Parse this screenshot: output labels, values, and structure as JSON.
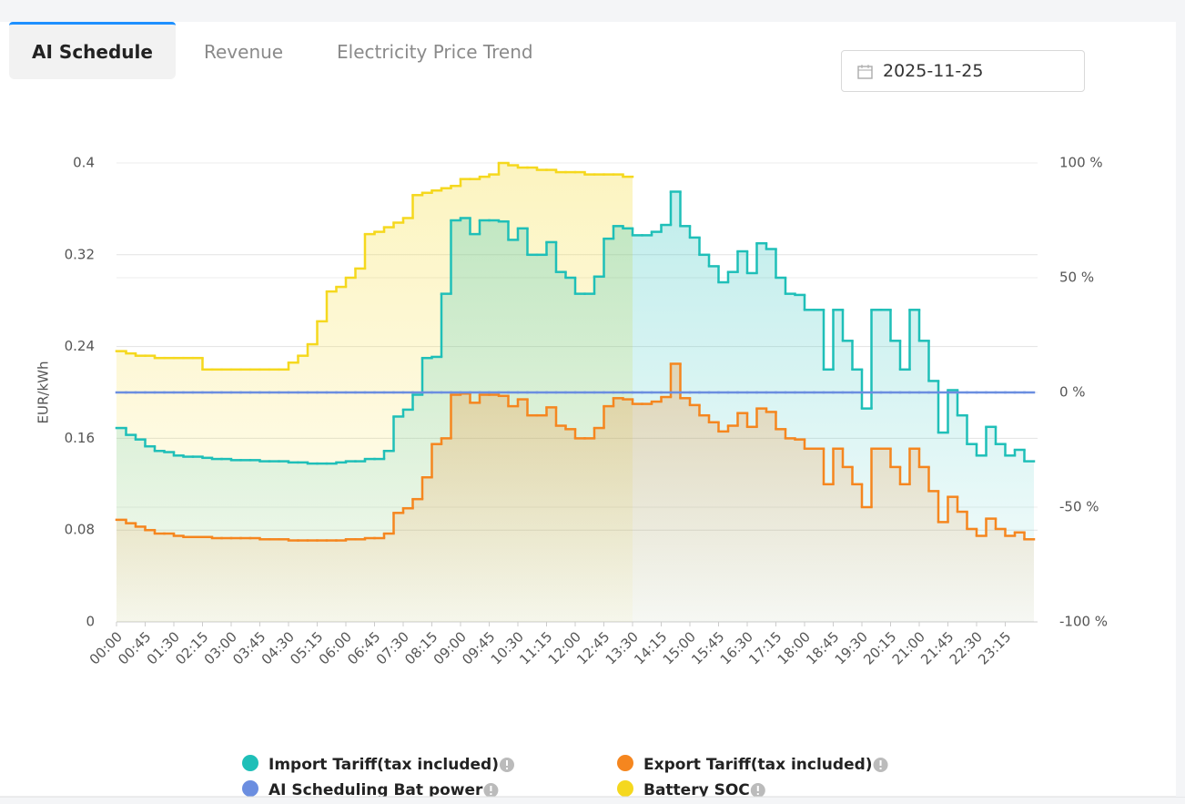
{
  "tabs": [
    "AI Schedule",
    "Revenue",
    "Electricity Price Trend"
  ],
  "date_picker": {
    "value": "2025-11-25"
  },
  "chart_data": {
    "type": "line",
    "y_label": "EUR/kWh",
    "categories": [
      "00:00",
      null,
      null,
      "00:45",
      null,
      null,
      "01:30",
      null,
      null,
      "02:15",
      null,
      null,
      "03:00",
      null,
      null,
      "03:45",
      null,
      null,
      "04:30",
      null,
      null,
      "05:15",
      null,
      null,
      "06:00",
      null,
      null,
      "06:45",
      null,
      null,
      "07:30",
      null,
      null,
      "08:15",
      null,
      null,
      "09:00",
      null,
      null,
      "09:45",
      null,
      null,
      "10:30",
      null,
      null,
      "11:15",
      null,
      null,
      "12:00",
      null,
      null,
      "12:45",
      null,
      null,
      "13:30",
      null,
      null,
      "14:15",
      null,
      null,
      "15:00",
      null,
      null,
      "15:45",
      null,
      null,
      "16:30",
      null,
      null,
      "17:15",
      null,
      null,
      "18:00",
      null,
      null,
      "18:45",
      null,
      null,
      "19:30",
      null,
      null,
      "20:15",
      null,
      null,
      "21:00",
      null,
      null,
      "21:45",
      null,
      null,
      "22:30",
      null,
      null,
      "23:15",
      null,
      null
    ],
    "ylim": [
      0,
      0.4
    ],
    "yticks": [
      0,
      0.08,
      0.16,
      0.24,
      0.32,
      0.4
    ],
    "y2lim": [
      -100,
      100
    ],
    "y2ticks": [
      {
        "value": -100,
        "label": "-100 %"
      },
      {
        "value": -50,
        "label": "-50 %"
      },
      {
        "value": 0,
        "label": "0 %"
      },
      {
        "value": 50,
        "label": "50 %"
      },
      {
        "value": 100,
        "label": "100 %"
      }
    ],
    "grid": true,
    "step": true,
    "series": [
      {
        "name": "Import Tariff(tax included)",
        "color": "#1fbfb8",
        "fill_area": true,
        "values": [
          0.169,
          0.163,
          0.159,
          0.153,
          0.149,
          0.148,
          0.145,
          0.144,
          0.144,
          0.143,
          0.142,
          0.142,
          0.141,
          0.141,
          0.141,
          0.14,
          0.14,
          0.14,
          0.139,
          0.139,
          0.138,
          0.138,
          0.138,
          0.139,
          0.14,
          0.14,
          0.142,
          0.142,
          0.149,
          0.179,
          0.185,
          0.198,
          0.23,
          0.231,
          0.286,
          0.35,
          0.352,
          0.338,
          0.35,
          0.35,
          0.349,
          0.333,
          0.343,
          0.32,
          0.32,
          0.331,
          0.305,
          0.3,
          0.286,
          0.286,
          0.301,
          0.334,
          0.345,
          0.343,
          0.337,
          0.337,
          0.34,
          0.346,
          0.375,
          0.345,
          0.335,
          0.32,
          0.31,
          0.296,
          0.305,
          0.323,
          0.304,
          0.33,
          0.325,
          0.3,
          0.286,
          0.285,
          0.272,
          0.272,
          0.22,
          0.272,
          0.245,
          0.22,
          0.186,
          0.272,
          0.272,
          0.245,
          0.22,
          0.272,
          0.245,
          0.21,
          0.165,
          0.202,
          0.18,
          0.155,
          0.145,
          0.17,
          0.155,
          0.145,
          0.15,
          0.14
        ]
      },
      {
        "name": "Export Tariff(tax included)",
        "color": "#f5861f",
        "fill_area": true,
        "values": [
          0.089,
          0.086,
          0.083,
          0.08,
          0.077,
          0.077,
          0.075,
          0.074,
          0.074,
          0.074,
          0.073,
          0.073,
          0.073,
          0.073,
          0.073,
          0.072,
          0.072,
          0.072,
          0.071,
          0.071,
          0.071,
          0.071,
          0.071,
          0.071,
          0.072,
          0.072,
          0.073,
          0.073,
          0.077,
          0.095,
          0.099,
          0.107,
          0.126,
          0.155,
          0.16,
          0.198,
          0.199,
          0.191,
          0.198,
          0.198,
          0.197,
          0.188,
          0.194,
          0.18,
          0.18,
          0.187,
          0.171,
          0.168,
          0.16,
          0.16,
          0.169,
          0.188,
          0.195,
          0.194,
          0.19,
          0.19,
          0.192,
          0.196,
          0.225,
          0.195,
          0.189,
          0.18,
          0.174,
          0.166,
          0.171,
          0.182,
          0.17,
          0.186,
          0.183,
          0.168,
          0.16,
          0.159,
          0.151,
          0.151,
          0.12,
          0.151,
          0.135,
          0.12,
          0.1,
          0.151,
          0.151,
          0.135,
          0.12,
          0.151,
          0.135,
          0.114,
          0.087,
          0.109,
          0.096,
          0.081,
          0.075,
          0.09,
          0.081,
          0.075,
          0.078,
          0.072
        ]
      },
      {
        "name": "AI Scheduling Bat power",
        "color": "#6b8ee0",
        "axis": "y2",
        "fill_area": false,
        "values": [
          0,
          0,
          0,
          0,
          0,
          0,
          0,
          0,
          0,
          0,
          0,
          0,
          0,
          0,
          0,
          0,
          0,
          0,
          0,
          0,
          0,
          0,
          0,
          0,
          0,
          0,
          0,
          0,
          0,
          0,
          0,
          0,
          0,
          0,
          0,
          0,
          0,
          0,
          0,
          0,
          0,
          0,
          0,
          0,
          0,
          0,
          0,
          0,
          0,
          0,
          0,
          0,
          0,
          0,
          0,
          0,
          0,
          0,
          0,
          0,
          0,
          0,
          0,
          0,
          0,
          0,
          0,
          0,
          0,
          0,
          0,
          0,
          0,
          0,
          0,
          0,
          0,
          0,
          0,
          0,
          0,
          0,
          0,
          0,
          0,
          0,
          0,
          0,
          0,
          0,
          0,
          0,
          0,
          0,
          0,
          0
        ]
      },
      {
        "name": "Battery SOC",
        "color": "#f5d81e",
        "axis": "y2",
        "fill_area": true,
        "values": [
          18,
          17,
          16,
          16,
          15,
          15,
          15,
          15,
          15,
          10,
          10,
          10,
          10,
          10,
          10,
          10,
          10,
          10,
          13,
          16,
          21,
          31,
          44,
          46,
          50,
          54,
          69,
          70,
          72,
          74,
          76,
          86,
          87,
          88,
          89,
          90,
          93,
          93,
          94,
          95,
          100,
          99,
          98,
          98,
          97,
          97,
          96,
          96,
          96,
          95,
          95,
          95,
          95,
          94,
          null,
          null,
          null,
          null,
          null,
          null,
          null,
          null,
          null,
          null,
          null,
          null,
          null,
          null,
          null,
          null,
          null,
          null,
          null,
          null,
          null,
          null,
          null,
          null,
          null,
          null,
          null,
          null,
          null,
          null,
          null,
          null,
          null,
          null,
          null,
          null,
          null,
          null,
          null,
          null,
          null,
          null
        ]
      }
    ]
  }
}
